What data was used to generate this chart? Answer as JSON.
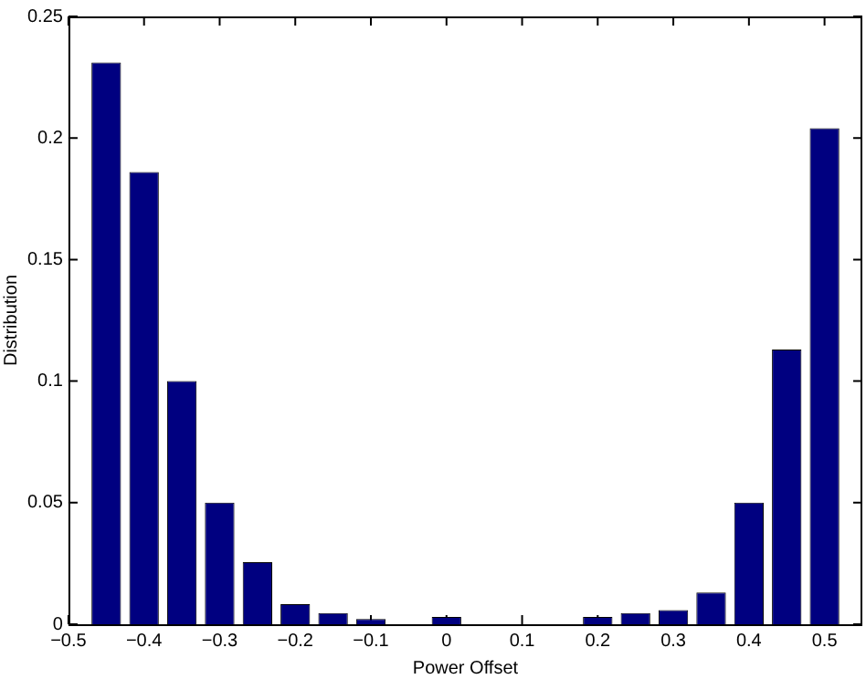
{
  "chart_data": {
    "type": "bar",
    "xlabel": "Power Offset",
    "ylabel": "Distribution",
    "x": [
      -0.45,
      -0.4,
      -0.35,
      -0.3,
      -0.25,
      -0.2,
      -0.15,
      -0.1,
      0,
      0.2,
      0.25,
      0.3,
      0.35,
      0.4,
      0.45,
      0.5
    ],
    "values": [
      0.231,
      0.186,
      0.1,
      0.05,
      0.0255,
      0.0083,
      0.0046,
      0.0022,
      0.003,
      0.003,
      0.0046,
      0.0058,
      0.013,
      0.05,
      0.113,
      0.204
    ],
    "color": "#000080",
    "xlim": [
      -0.5,
      0.55
    ],
    "xticks": [
      -0.5,
      -0.4,
      -0.3,
      -0.2,
      -0.1,
      0,
      0.1,
      0.2,
      0.3,
      0.4,
      0.5
    ],
    "ylim": [
      0,
      0.25
    ],
    "yticks": [
      0,
      0.05,
      0.1,
      0.15,
      0.2,
      0.25
    ],
    "grid": false
  }
}
